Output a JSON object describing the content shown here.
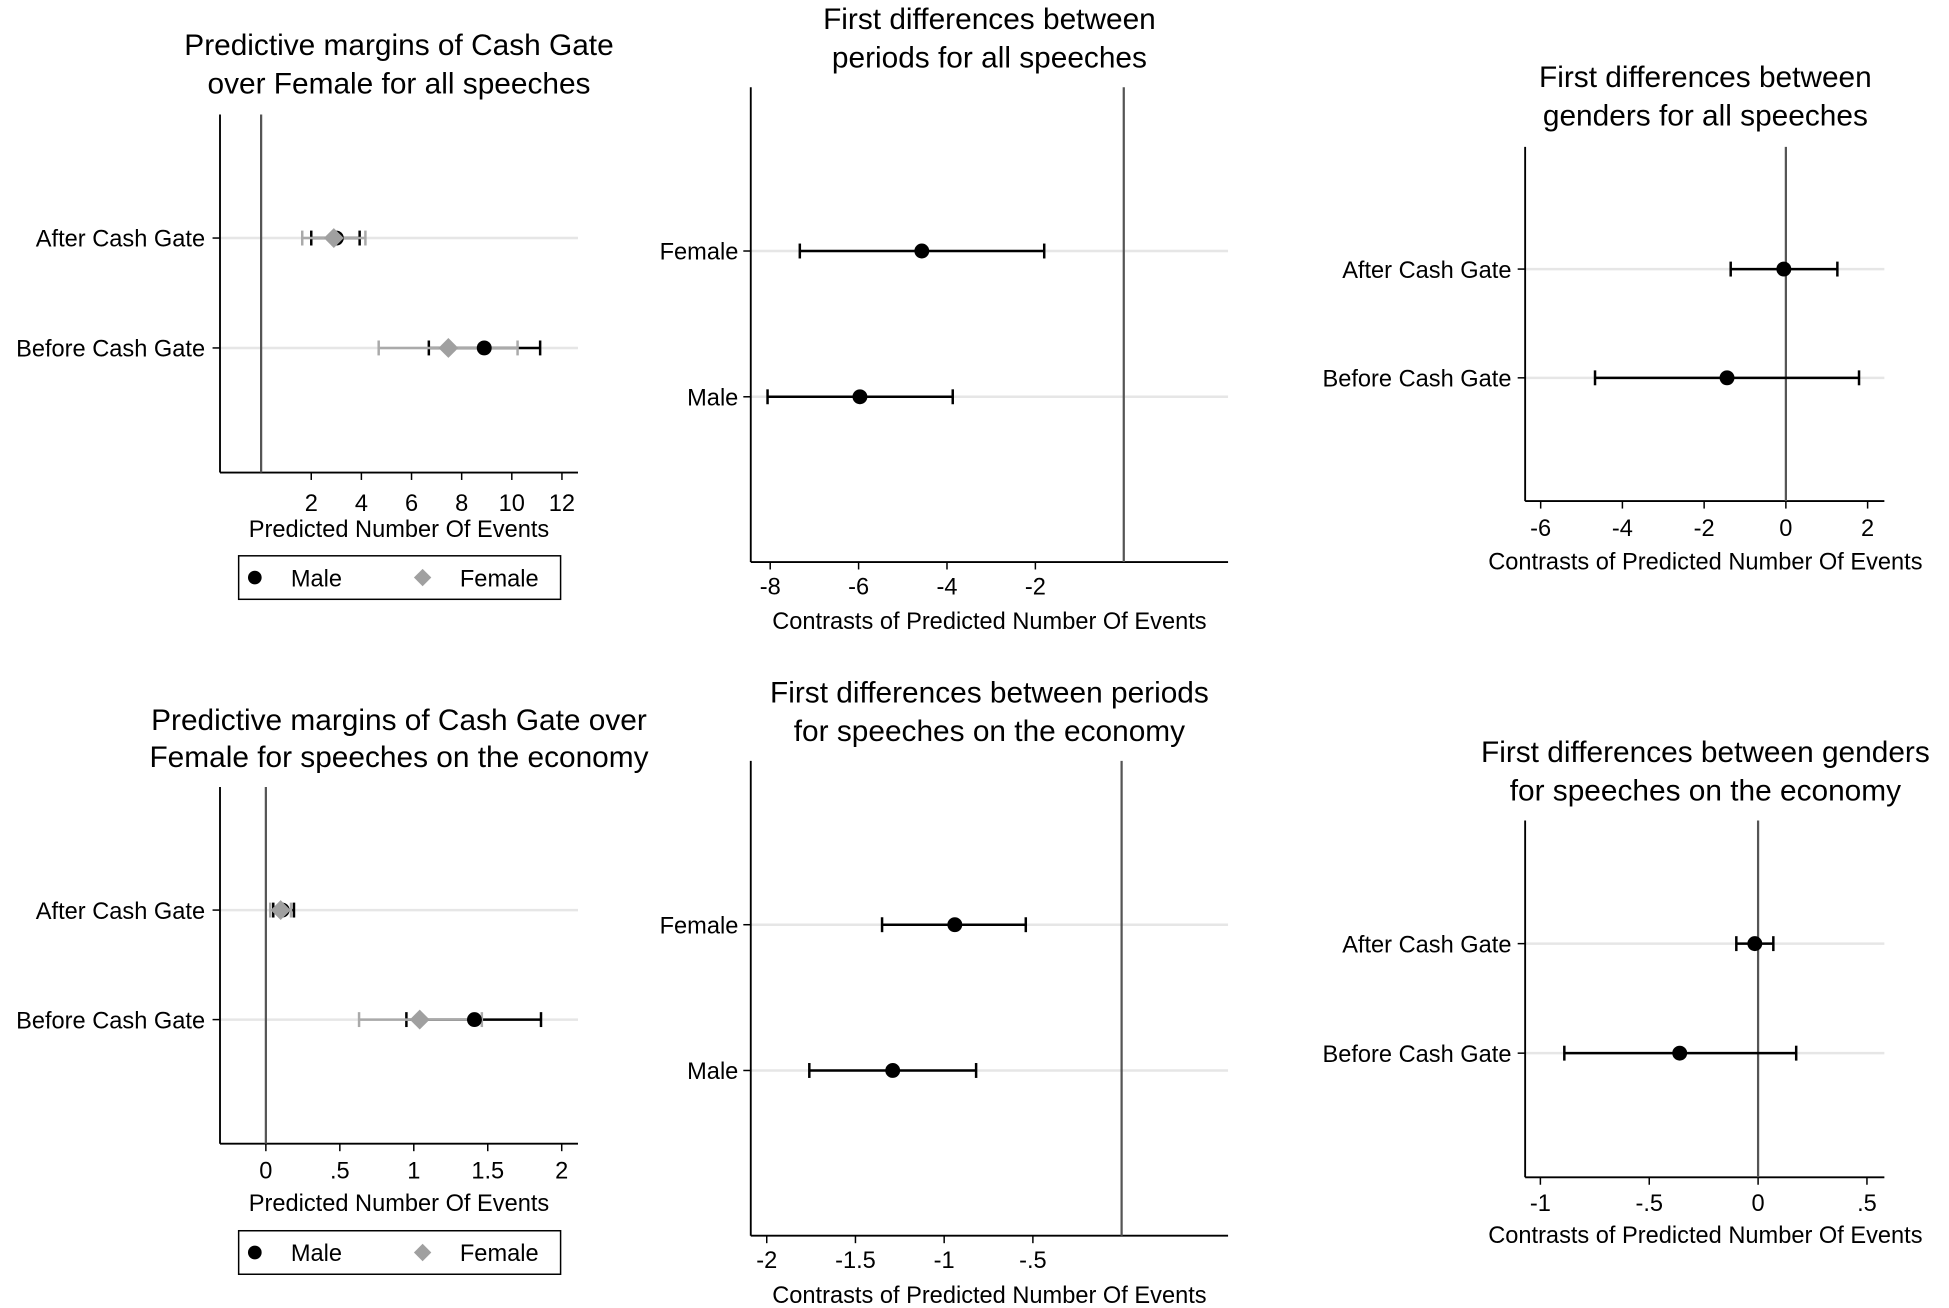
{
  "chart_data": [
    {
      "type": "scatter",
      "title": [
        "Predictive margins of Cash Gate",
        "over Female for all speeches"
      ],
      "xlabel": "Predicted Number Of Events",
      "xlim": [
        -1.64,
        12.64
      ],
      "xticks": [
        {
          "value": 2,
          "label": "2"
        },
        {
          "value": 4,
          "label": "4"
        },
        {
          "value": 6,
          "label": "6"
        },
        {
          "value": 8,
          "label": "8"
        },
        {
          "value": 10,
          "label": "10"
        },
        {
          "value": 12,
          "label": "12"
        }
      ],
      "refline": 0,
      "rows": [
        {
          "label": "After Cash Gate",
          "points": [
            {
              "series": "Male",
              "value": 3.0,
              "ci": [
                2.0,
                3.93
              ]
            },
            {
              "series": "Female",
              "value": 2.9,
              "ci": [
                1.64,
                4.16
              ]
            }
          ]
        },
        {
          "label": "Before Cash Gate",
          "points": [
            {
              "series": "Male",
              "value": 8.9,
              "ci": [
                6.69,
                11.13
              ]
            },
            {
              "series": "Female",
              "value": 7.47,
              "ci": [
                4.69,
                10.23
              ]
            }
          ]
        }
      ],
      "legend": {
        "placement": "bottom",
        "entries": [
          "Male",
          "Female"
        ]
      }
    },
    {
      "type": "scatter",
      "title": [
        "First differences between",
        "periods for all speeches"
      ],
      "xlabel": "Contrasts of Predicted Number Of Events",
      "xlim": [
        -8.44,
        2.36
      ],
      "xticks": [
        {
          "value": -8,
          "label": "-8"
        },
        {
          "value": -6,
          "label": "-6"
        },
        {
          "value": -4,
          "label": "-4"
        },
        {
          "value": -2,
          "label": "-2"
        }
      ],
      "refline": 0,
      "rows": [
        {
          "label": "Female",
          "points": [
            {
              "series": "Contrast",
              "value": -4.57,
              "ci": [
                -7.33,
                -1.8
              ]
            }
          ]
        },
        {
          "label": "Male",
          "points": [
            {
              "series": "Contrast",
              "value": -5.97,
              "ci": [
                -8.06,
                -3.87
              ]
            }
          ]
        }
      ]
    },
    {
      "type": "scatter",
      "title": [
        "First differences between",
        "genders for all speeches"
      ],
      "xlabel": "Contrasts of Predicted Number Of Events",
      "xlim": [
        -6.38,
        2.41
      ],
      "xticks": [
        {
          "value": -6,
          "label": "-6"
        },
        {
          "value": -4,
          "label": "-4"
        },
        {
          "value": -2,
          "label": "-2"
        },
        {
          "value": 0,
          "label": "0"
        },
        {
          "value": 2,
          "label": "2"
        }
      ],
      "refline": 0,
      "rows": [
        {
          "label": "After Cash Gate",
          "points": [
            {
              "series": "Contrast",
              "value": -0.05,
              "ci": [
                -1.35,
                1.26
              ]
            }
          ]
        },
        {
          "label": "Before Cash Gate",
          "points": [
            {
              "series": "Contrast",
              "value": -1.44,
              "ci": [
                -4.67,
                1.79
              ]
            }
          ]
        }
      ]
    },
    {
      "type": "scatter",
      "title": [
        "Predictive margins of Cash Gate over",
        "Female for speeches on the economy"
      ],
      "xlabel": "Predicted Number Of Events",
      "xlim": [
        -0.31,
        2.11
      ],
      "xticks": [
        {
          "value": 0,
          "label": "0"
        },
        {
          "value": 0.5,
          "label": ".5"
        },
        {
          "value": 1,
          "label": "1"
        },
        {
          "value": 1.5,
          "label": "1.5"
        },
        {
          "value": 2,
          "label": "2"
        }
      ],
      "refline": 0,
      "rows": [
        {
          "label": "After Cash Gate",
          "points": [
            {
              "series": "Male",
              "value": 0.11,
              "ci": [
                0.05,
                0.19
              ]
            },
            {
              "series": "Female",
              "value": 0.1,
              "ci": [
                0.03,
                0.17
              ]
            }
          ]
        },
        {
          "label": "Before Cash Gate",
          "points": [
            {
              "series": "Male",
              "value": 1.41,
              "ci": [
                0.95,
                1.86
              ]
            },
            {
              "series": "Female",
              "value": 1.04,
              "ci": [
                0.63,
                1.46
              ]
            }
          ]
        }
      ],
      "legend": {
        "placement": "bottom",
        "entries": [
          "Male",
          "Female"
        ]
      }
    },
    {
      "type": "scatter",
      "title": [
        "First differences between periods",
        "for speeches on the economy"
      ],
      "xlabel": "Contrasts of Predicted Number Of Events",
      "xlim": [
        -2.09,
        0.6
      ],
      "xticks": [
        {
          "value": -2,
          "label": "-2"
        },
        {
          "value": -1.5,
          "label": "-1.5"
        },
        {
          "value": -1,
          "label": "-1"
        },
        {
          "value": -0.5,
          "label": "-.5"
        }
      ],
      "refline": 0,
      "rows": [
        {
          "label": "Female",
          "points": [
            {
              "series": "Contrast",
              "value": -0.94,
              "ci": [
                -1.35,
                -0.54
              ]
            }
          ]
        },
        {
          "label": "Male",
          "points": [
            {
              "series": "Contrast",
              "value": -1.29,
              "ci": [
                -1.76,
                -0.82
              ]
            }
          ]
        }
      ]
    },
    {
      "type": "scatter",
      "title": [
        "First differences between genders",
        "for speeches on the economy"
      ],
      "xlabel": "Contrasts of Predicted Number Of Events",
      "xlim": [
        -1.07,
        0.58
      ],
      "xticks": [
        {
          "value": -1,
          "label": "-1"
        },
        {
          "value": -0.5,
          "label": "-.5"
        },
        {
          "value": 0,
          "label": "0"
        },
        {
          "value": 0.5,
          "label": ".5"
        }
      ],
      "refline": 0,
      "rows": [
        {
          "label": "After Cash Gate",
          "points": [
            {
              "series": "Contrast",
              "value": -0.015,
              "ci": [
                -0.1,
                0.07
              ]
            }
          ]
        },
        {
          "label": "Before Cash Gate",
          "points": [
            {
              "series": "Contrast",
              "value": -0.36,
              "ci": [
                -0.89,
                0.175
              ]
            }
          ]
        }
      ]
    }
  ],
  "colors": {
    "male": "#000000",
    "female": "#a0a0a0",
    "female_ci": "#aaaaaa",
    "grid": "#e6e6e6",
    "refline": "#555555"
  }
}
